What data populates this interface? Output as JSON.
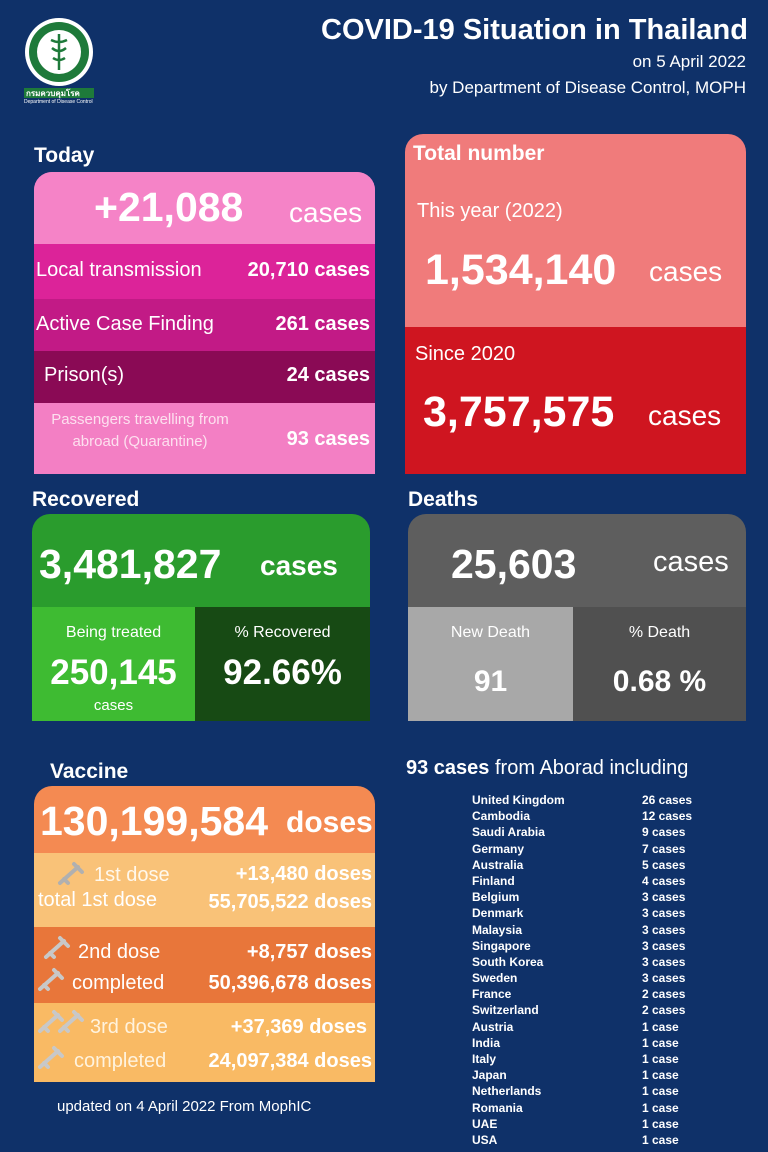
{
  "header": {
    "title": "COVID-19 Situation in Thailand",
    "date": "on 5 April 2022",
    "by": "by Department of Disease Control, MOPH",
    "logo_text": "กรมควบคุมโรค",
    "logo_subtext": "Department of Disease Control"
  },
  "today": {
    "title": "Today",
    "total": "+21,088",
    "unit": "cases",
    "rows": [
      {
        "label": "Local transmission",
        "value": "20,710 cases"
      },
      {
        "label": "Active Case Finding",
        "value": "261 cases"
      },
      {
        "label": "Prison(s)",
        "value": "24 cases"
      },
      {
        "label": "Passengers travelling from abroad (Quarantine)",
        "value": "93 cases"
      }
    ]
  },
  "total": {
    "title": "Total number",
    "year_label": "This year (2022)",
    "year_value": "1,534,140",
    "since_label": "Since 2020",
    "since_value": "3,757,575",
    "unit": "cases"
  },
  "recovered": {
    "title": "Recovered",
    "value": "3,481,827",
    "unit": "cases",
    "treated_label": "Being treated",
    "treated_value": "250,145",
    "treated_unit": "cases",
    "pct_label": "% Recovered",
    "pct_value": "92.66%"
  },
  "deaths": {
    "title": "Deaths",
    "value": "25,603",
    "unit": "cases",
    "new_label": "New Death",
    "new_value": "91",
    "pct_label": "% Death",
    "pct_value": "0.68 %"
  },
  "vaccine": {
    "title": "Vaccine",
    "total": "130,199,584",
    "unit": "doses",
    "dose1_label": "1st dose",
    "dose1_value": "+13,480 doses",
    "dose1_total_label": "total 1st dose",
    "dose1_total_value": "55,705,522 doses",
    "dose2_label": "2nd dose",
    "dose2_value": "+8,757 doses",
    "dose2_total_label": "completed",
    "dose2_total_value": "50,396,678 doses",
    "dose3_label": "3rd dose",
    "dose3_value": "+37,369 doses",
    "dose3_total_label": "completed",
    "dose3_total_value": "24,097,384 doses"
  },
  "updated": "updated on 4 April  2022 From MophIC",
  "abroad": {
    "count": "93 cases",
    "heading": "from Aborad  including",
    "countries": [
      {
        "name": "United Kingdom",
        "cases": "26 cases"
      },
      {
        "name": "Cambodia",
        "cases": "12 cases"
      },
      {
        "name": "Saudi Arabia",
        "cases": "9 cases"
      },
      {
        "name": "Germany",
        "cases": "7 cases"
      },
      {
        "name": "Australia",
        "cases": "5 cases"
      },
      {
        "name": "Finland",
        "cases": "4 cases"
      },
      {
        "name": "Belgium",
        "cases": "3 cases"
      },
      {
        "name": "Denmark",
        "cases": "3 cases"
      },
      {
        "name": "Malaysia",
        "cases": "3 cases"
      },
      {
        "name": "Singapore",
        "cases": "3 cases"
      },
      {
        "name": "South Korea",
        "cases": "3 cases"
      },
      {
        "name": "Sweden",
        "cases": "3 cases"
      },
      {
        "name": "France",
        "cases": "2 cases"
      },
      {
        "name": "Switzerland",
        "cases": "2 cases"
      },
      {
        "name": "Austria",
        "cases": "1 case"
      },
      {
        "name": "India",
        "cases": "1 case"
      },
      {
        "name": "Italy",
        "cases": "1 case"
      },
      {
        "name": "Japan",
        "cases": "1 case"
      },
      {
        "name": "Netherlands",
        "cases": "1 case"
      },
      {
        "name": "Romania",
        "cases": "1 case"
      },
      {
        "name": "UAE",
        "cases": "1 case"
      },
      {
        "name": "USA",
        "cases": "1 case"
      }
    ]
  },
  "colors": {
    "background": "#0f3169",
    "today": "#f583c7",
    "total_top": "#f07b7b",
    "total_bottom": "#cf1520",
    "recovered": "#2a9c2d",
    "deaths": "#5e5e5e",
    "vaccine": "#f48a52"
  }
}
